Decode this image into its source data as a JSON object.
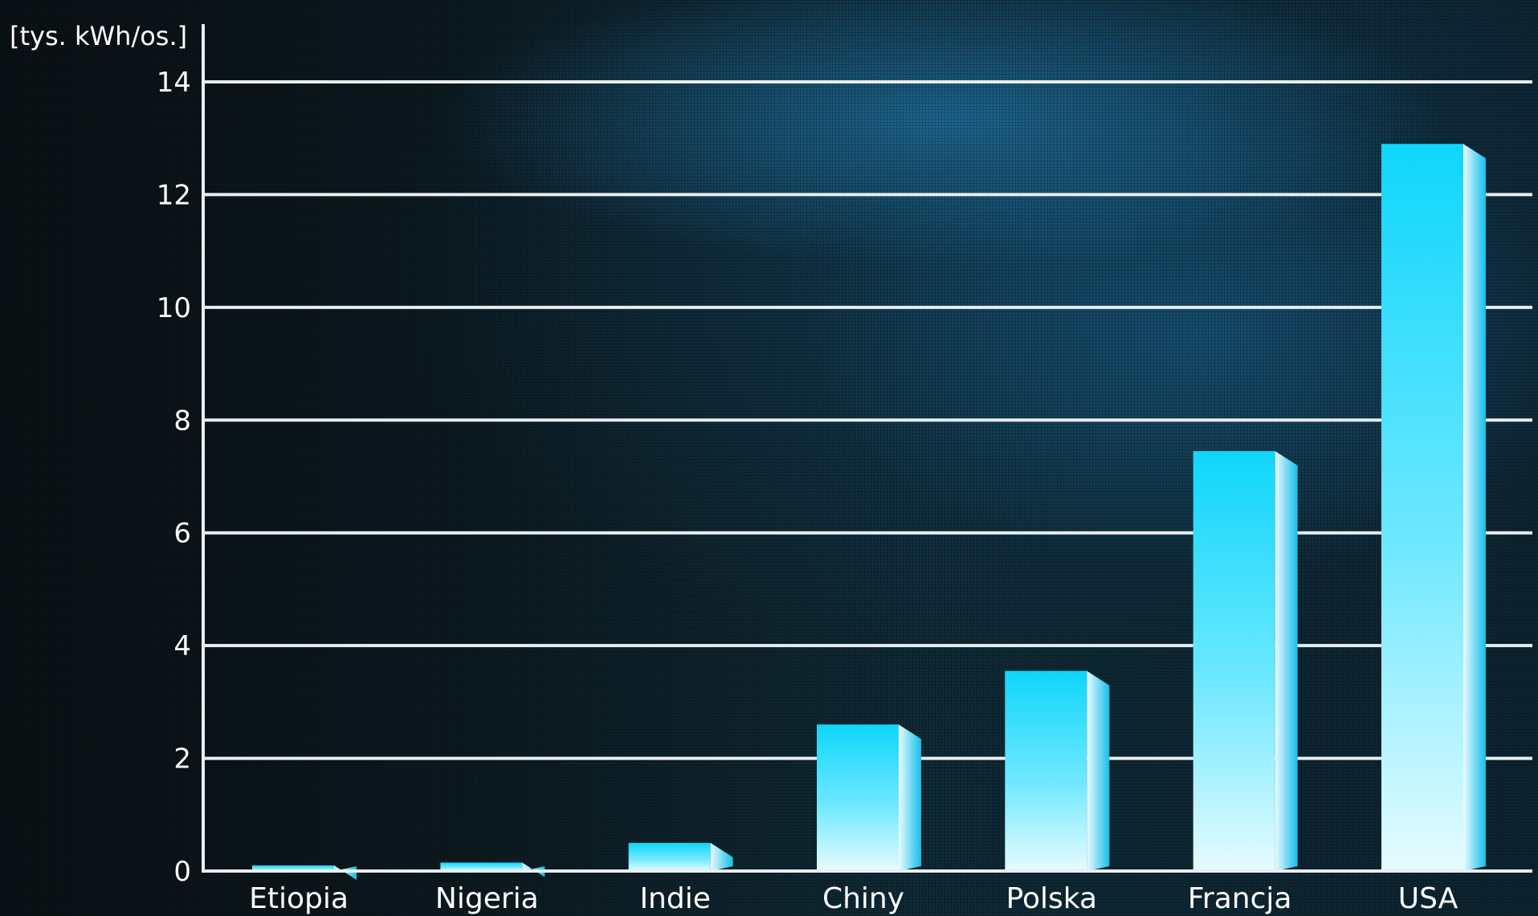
{
  "chart_data": {
    "type": "bar",
    "ylabel": "[tys. kWh/os.]",
    "categories": [
      "Etiopia",
      "Nigeria",
      "Indie",
      "Chiny",
      "Polska",
      "Francja",
      "USA"
    ],
    "values": [
      0.1,
      0.15,
      0.5,
      2.6,
      3.55,
      7.45,
      12.9
    ],
    "yticks": [
      0,
      2,
      4,
      6,
      8,
      10,
      12,
      14
    ],
    "ylim": [
      0,
      14
    ],
    "grid": true,
    "colors": {
      "bar_front_top": "#12d8fb",
      "bar_front_bottom": "#dff9ff",
      "bar_side": "#18b8e6",
      "grid": "#e8eef0",
      "text": "#ffffff"
    }
  }
}
